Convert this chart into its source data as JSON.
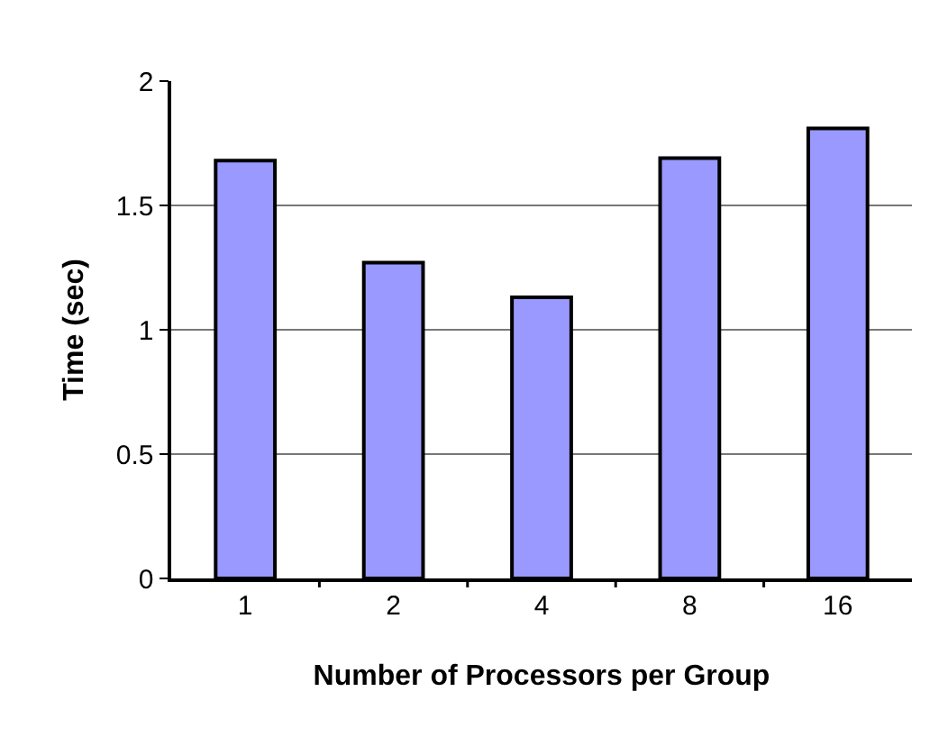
{
  "chart_data": {
    "type": "bar",
    "xlabel": "Number of Processors per Group",
    "ylabel": "Time (sec)",
    "categories": [
      "1",
      "2",
      "4",
      "8",
      "16"
    ],
    "values": [
      1.68,
      1.27,
      1.13,
      1.69,
      1.81
    ],
    "color": "#9999ff",
    "ylim": [
      0,
      2
    ],
    "yticks": [
      0,
      0.5,
      1,
      1.5,
      2
    ],
    "grid": "y"
  }
}
